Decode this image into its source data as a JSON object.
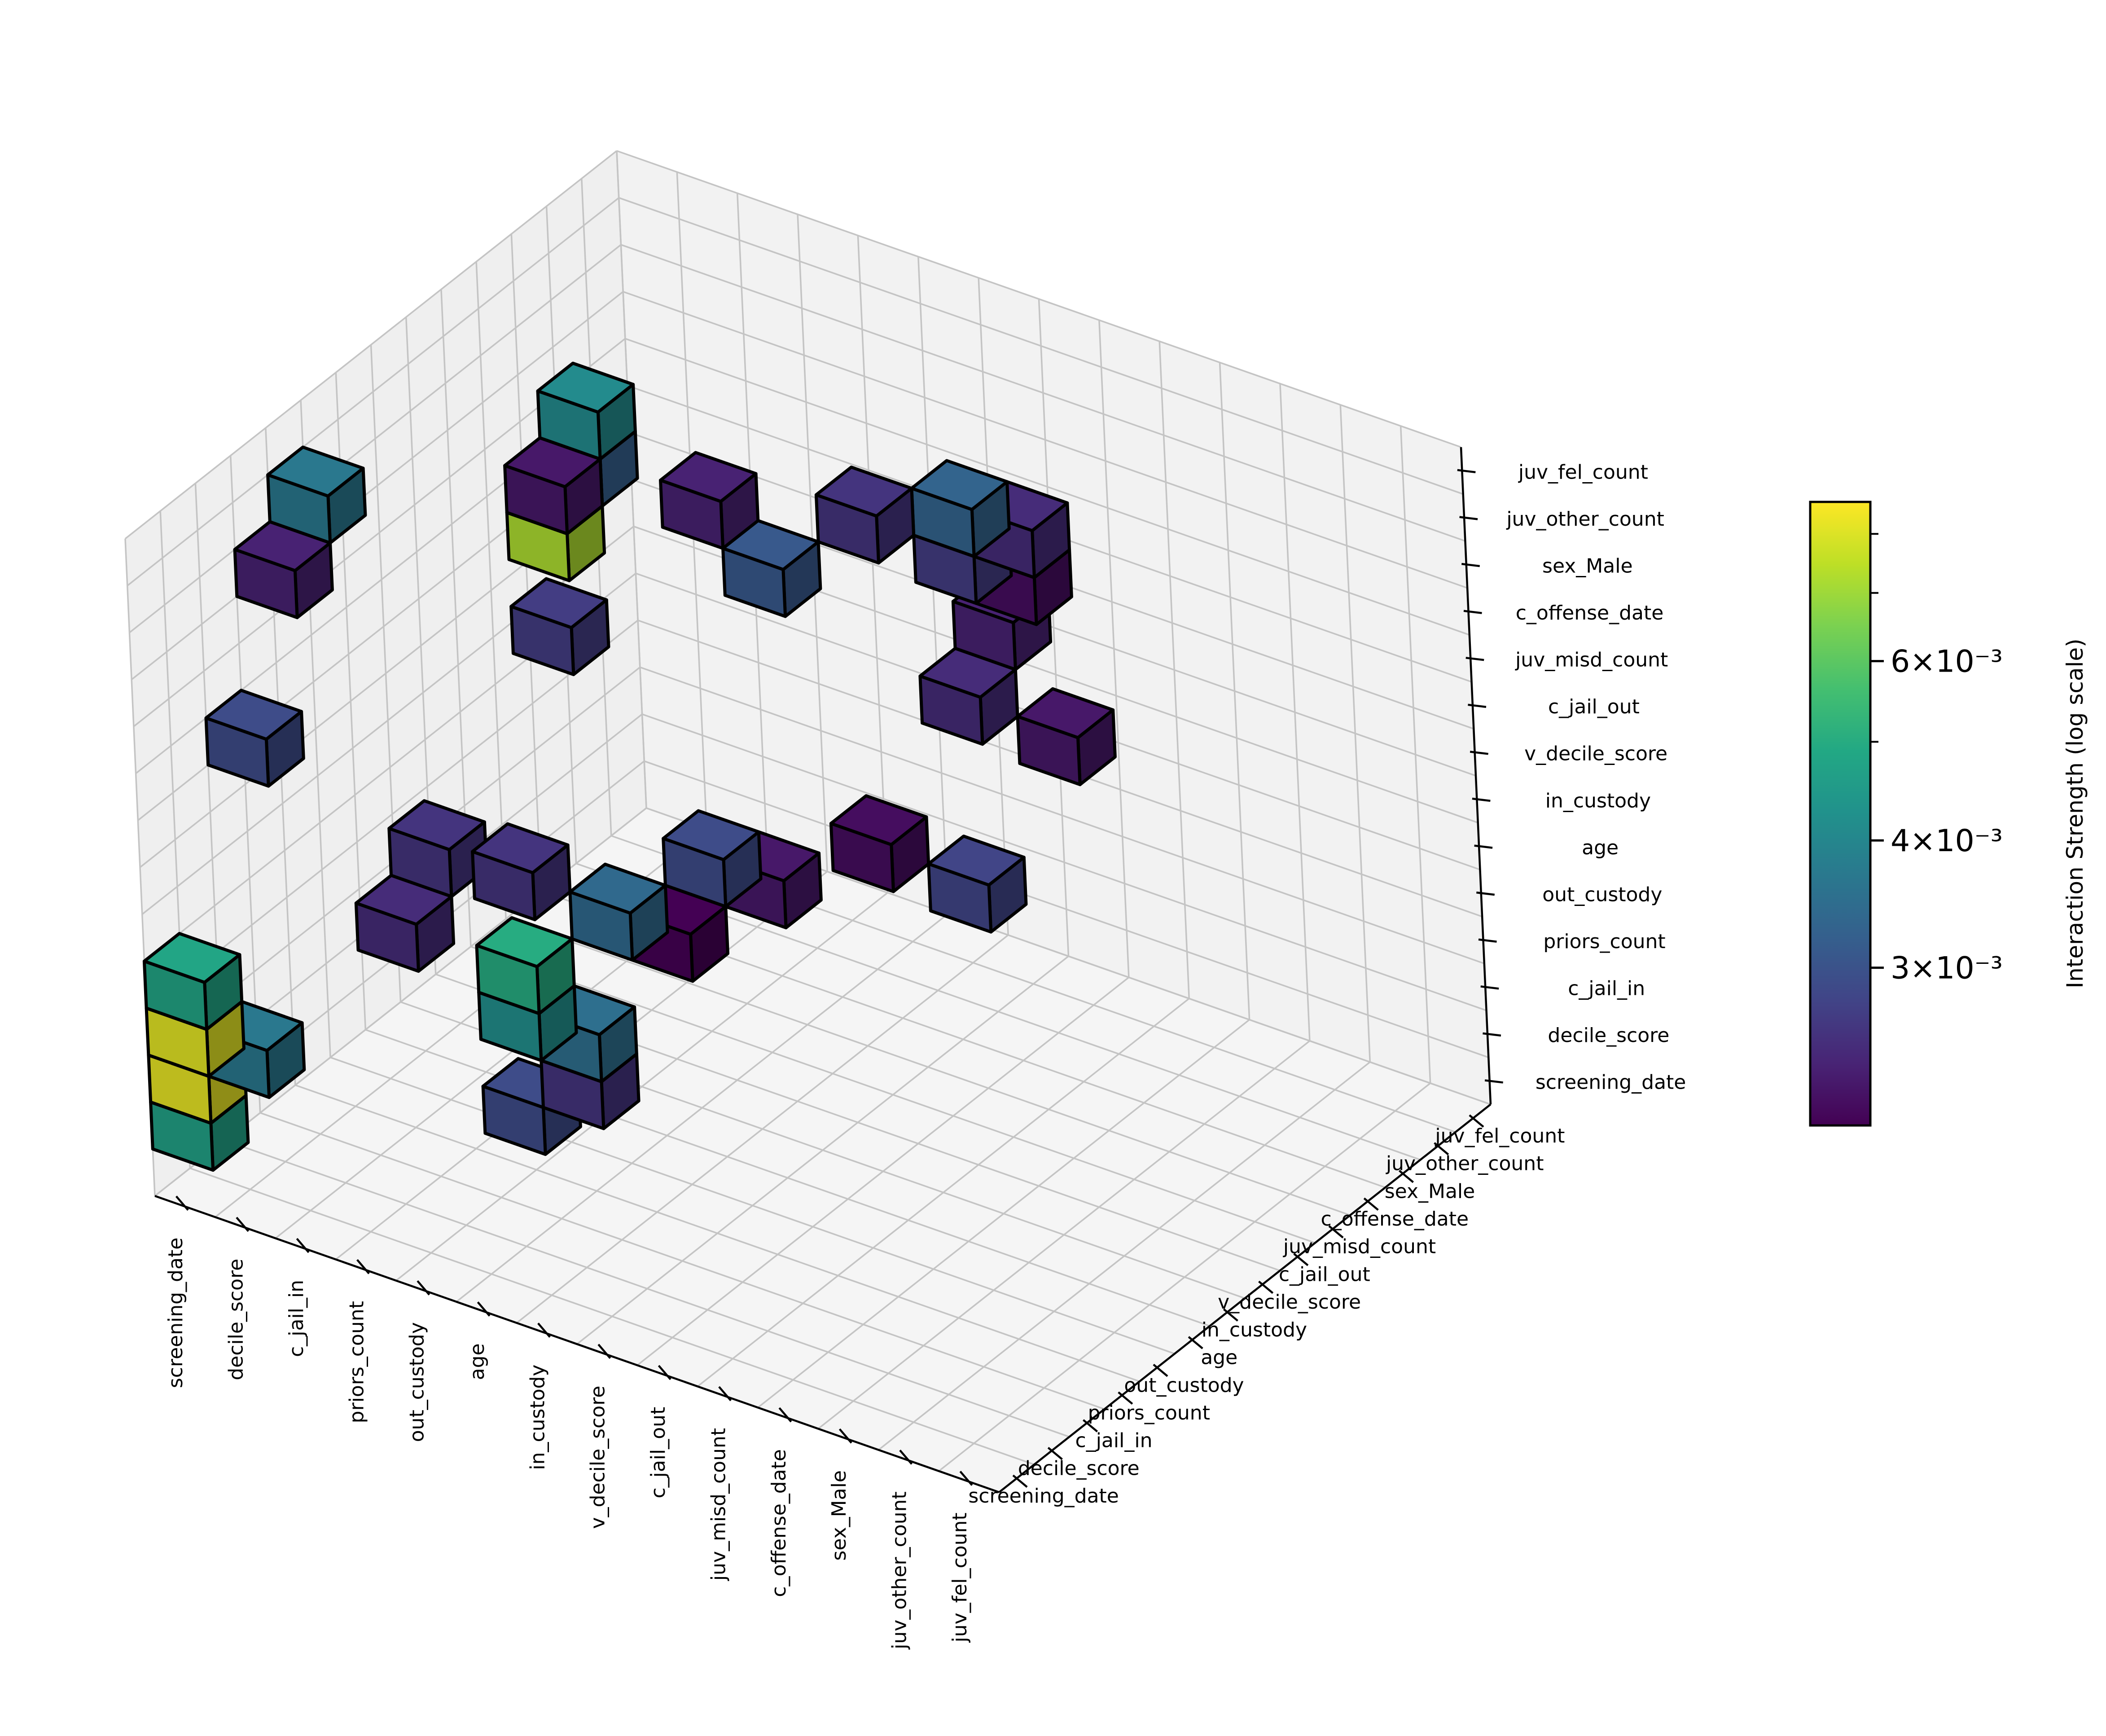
{
  "chart_data": {
    "type": "3d-bar-voxel",
    "title": "",
    "features": [
      "screening_date",
      "decile_score",
      "c_jail_in",
      "priors_count",
      "out_custody",
      "age",
      "in_custody",
      "v_decile_score",
      "c_jail_out",
      "juv_misd_count",
      "c_offense_date",
      "sex_Male",
      "juv_other_count",
      "juv_fel_count"
    ],
    "x_axis": {
      "label": "",
      "tick_labels": [
        "screening_date",
        "decile_score",
        "c_jail_in",
        "priors_count",
        "out_custody",
        "age",
        "in_custody",
        "v_decile_score",
        "c_jail_out",
        "juv_misd_count",
        "c_offense_date",
        "sex_Male",
        "juv_other_count",
        "juv_fel_count"
      ]
    },
    "y_axis": {
      "label": "",
      "tick_labels": [
        "screening_date",
        "decile_score",
        "c_jail_in",
        "priors_count",
        "out_custody",
        "age",
        "in_custody",
        "v_decile_score",
        "c_jail_out",
        "juv_misd_count",
        "c_offense_date",
        "sex_Male",
        "juv_other_count",
        "juv_fel_count"
      ]
    },
    "z_axis": {
      "label": "",
      "tick_labels": [
        "screening_date",
        "decile_score",
        "c_jail_in",
        "priors_count",
        "out_custody",
        "age",
        "in_custody",
        "v_decile_score",
        "c_jail_out",
        "juv_misd_count",
        "c_offense_date",
        "sex_Male",
        "juv_other_count",
        "juv_fel_count"
      ]
    },
    "colorbar": {
      "label": "Interaction Strength (log scale)",
      "scale": "log",
      "colormap": "viridis",
      "range": [
        0.0021,
        0.0086
      ],
      "major_ticks": [
        {
          "value": 0.003,
          "label": "3×10⁻³"
        },
        {
          "value": 0.004,
          "label": "4×10⁻³"
        },
        {
          "value": 0.006,
          "label": "6×10⁻³"
        }
      ],
      "minor_ticks": [
        0.005,
        0.007,
        0.008
      ]
    },
    "cubes": [
      {
        "x": 0,
        "y": 0,
        "z": 1,
        "value": 0.0047
      },
      {
        "x": 0,
        "y": 0,
        "z": 2,
        "value": 0.0082
      },
      {
        "x": 0,
        "y": 0,
        "z": 3,
        "value": 0.0081
      },
      {
        "x": 0,
        "y": 0,
        "z": 4,
        "value": 0.0048
      },
      {
        "x": 1,
        "y": 0,
        "z": 3,
        "value": 0.0037
      },
      {
        "x": 0,
        "y": 2,
        "z": 8,
        "value": 0.0029
      },
      {
        "x": 0,
        "y": 3,
        "z": 11,
        "value": 0.0024
      },
      {
        "x": 0,
        "y": 4,
        "z": 12,
        "value": 0.0037
      },
      {
        "x": 3,
        "y": 1,
        "z": 6,
        "value": 0.0025
      },
      {
        "x": 5,
        "y": 1,
        "z": 3,
        "value": 0.0029
      },
      {
        "x": 6,
        "y": 1,
        "z": 4,
        "value": 0.0026
      },
      {
        "x": 5,
        "y": 1,
        "z": 5,
        "value": 0.0042
      },
      {
        "x": 5,
        "y": 1,
        "z": 6,
        "value": 0.005
      },
      {
        "x": 6,
        "y": 1,
        "z": 5,
        "value": 0.0035
      },
      {
        "x": 5,
        "y": 1,
        "z": 8,
        "value": 0.0026
      },
      {
        "x": 3,
        "y": 2,
        "z": 7,
        "value": 0.0026
      },
      {
        "x": 6,
        "y": 2,
        "z": 7,
        "value": 0.0034
      },
      {
        "x": 7,
        "y": 2,
        "z": 7,
        "value": 0.0021
      },
      {
        "x": 7,
        "y": 3,
        "z": 8,
        "value": 0.0029
      },
      {
        "x": 8,
        "y": 3,
        "z": 8,
        "value": 0.0023
      },
      {
        "x": 4,
        "y": 4,
        "z": 11,
        "value": 0.0027
      },
      {
        "x": 4,
        "y": 4,
        "z": 14,
        "value": 0.0023
      },
      {
        "x": 4,
        "y": 5,
        "z": 15,
        "value": 0.0041
      },
      {
        "x": 4,
        "y": 5,
        "z": 14,
        "value": 0.0032
      },
      {
        "x": 4,
        "y": 4,
        "z": 13,
        "value": 0.0072
      },
      {
        "x": 6,
        "y": 5,
        "z": 14,
        "value": 0.0024
      },
      {
        "x": 7,
        "y": 5,
        "z": 13,
        "value": 0.0031
      },
      {
        "x": 8,
        "y": 6,
        "z": 14,
        "value": 0.0026
      },
      {
        "x": 9,
        "y": 7,
        "z": 14,
        "value": 0.0033
      },
      {
        "x": 10,
        "y": 7,
        "z": 14,
        "value": 0.0025
      },
      {
        "x": 9,
        "y": 7,
        "z": 13,
        "value": 0.0027
      },
      {
        "x": 10,
        "y": 7,
        "z": 13,
        "value": 0.0022
      },
      {
        "x": 9,
        "y": 8,
        "z": 11,
        "value": 0.0024
      },
      {
        "x": 9,
        "y": 7,
        "z": 10,
        "value": 0.0025
      },
      {
        "x": 10,
        "y": 8,
        "z": 9,
        "value": 0.0023
      },
      {
        "x": 8,
        "y": 6,
        "z": 7,
        "value": 0.0022
      },
      {
        "x": 9,
        "y": 7,
        "z": 6,
        "value": 0.0028
      }
    ]
  }
}
